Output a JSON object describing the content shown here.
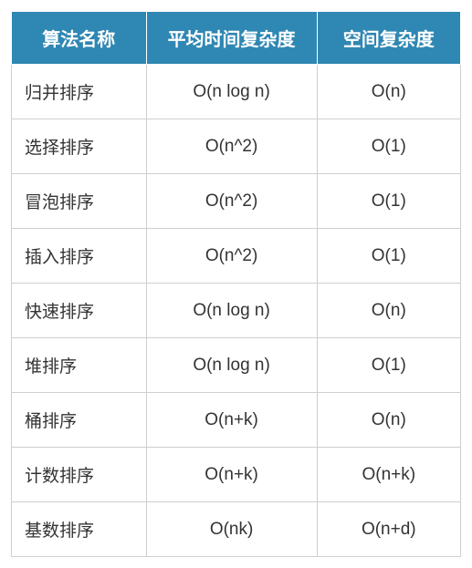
{
  "table": {
    "header_bg": "#2f87b3",
    "header_fg": "#ffffff",
    "border_color": "#cfcfcf",
    "cell_fg": "#333333",
    "header_fontsize": 20,
    "cell_fontsize": 19,
    "columns": [
      "算法名称",
      "平均时间复杂度",
      "空间复杂度"
    ],
    "column_widths": [
      "30%",
      "38%",
      "32%"
    ],
    "column_align": [
      "left",
      "center",
      "center"
    ],
    "rows": [
      [
        "归并排序",
        "O(n log n)",
        "O(n)"
      ],
      [
        "选择排序",
        "O(n^2)",
        "O(1)"
      ],
      [
        "冒泡排序",
        "O(n^2)",
        "O(1)"
      ],
      [
        "插入排序",
        "O(n^2)",
        "O(1)"
      ],
      [
        "快速排序",
        "O(n log n)",
        "O(n)"
      ],
      [
        "堆排序",
        "O(n log n)",
        "O(1)"
      ],
      [
        "桶排序",
        "O(n+k)",
        "O(n)"
      ],
      [
        "计数排序",
        "O(n+k)",
        "O(n+k)"
      ],
      [
        "基数排序",
        "O(nk)",
        "O(n+d)"
      ]
    ]
  }
}
